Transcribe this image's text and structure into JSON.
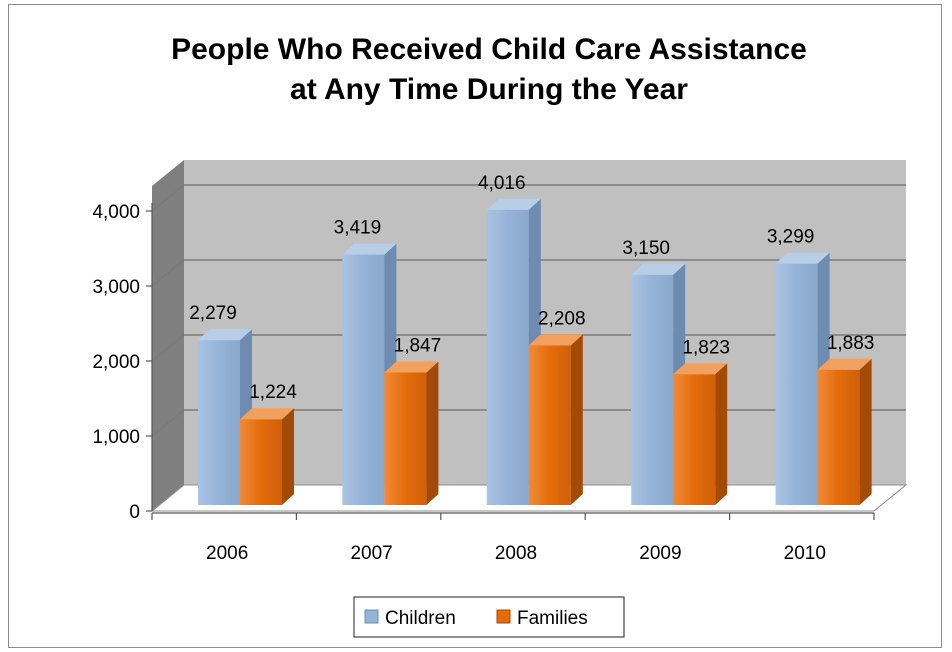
{
  "chart_data": {
    "type": "bar",
    "title": [
      "People Who Received Child Care Assistance",
      "at Any Time During the Year"
    ],
    "categories": [
      "2006",
      "2007",
      "2008",
      "2009",
      "2010"
    ],
    "series": [
      {
        "name": "Children",
        "values": [
          2279,
          3419,
          4016,
          3150,
          3299
        ],
        "labels": [
          "2,279",
          "3,419",
          "4,016",
          "3,150",
          "3,299"
        ],
        "color": "#95b3d7"
      },
      {
        "name": "Families",
        "values": [
          1224,
          1847,
          2208,
          1823,
          1883
        ],
        "labels": [
          "1,224",
          "1,847",
          "2,208",
          "1,823",
          "1,883"
        ],
        "color": "#e46c0a"
      }
    ],
    "y_ticks": [
      "0",
      "1,000",
      "2,000",
      "3,000",
      "4,000"
    ],
    "ylim": [
      0,
      4000
    ],
    "grid": true,
    "three_d": true,
    "legend_position": "bottom",
    "colors": {
      "wall": "#c0c0c0",
      "wall_side": "#7f7f7f",
      "floor": "#ffffff",
      "grid": "#7a7a7a"
    }
  }
}
